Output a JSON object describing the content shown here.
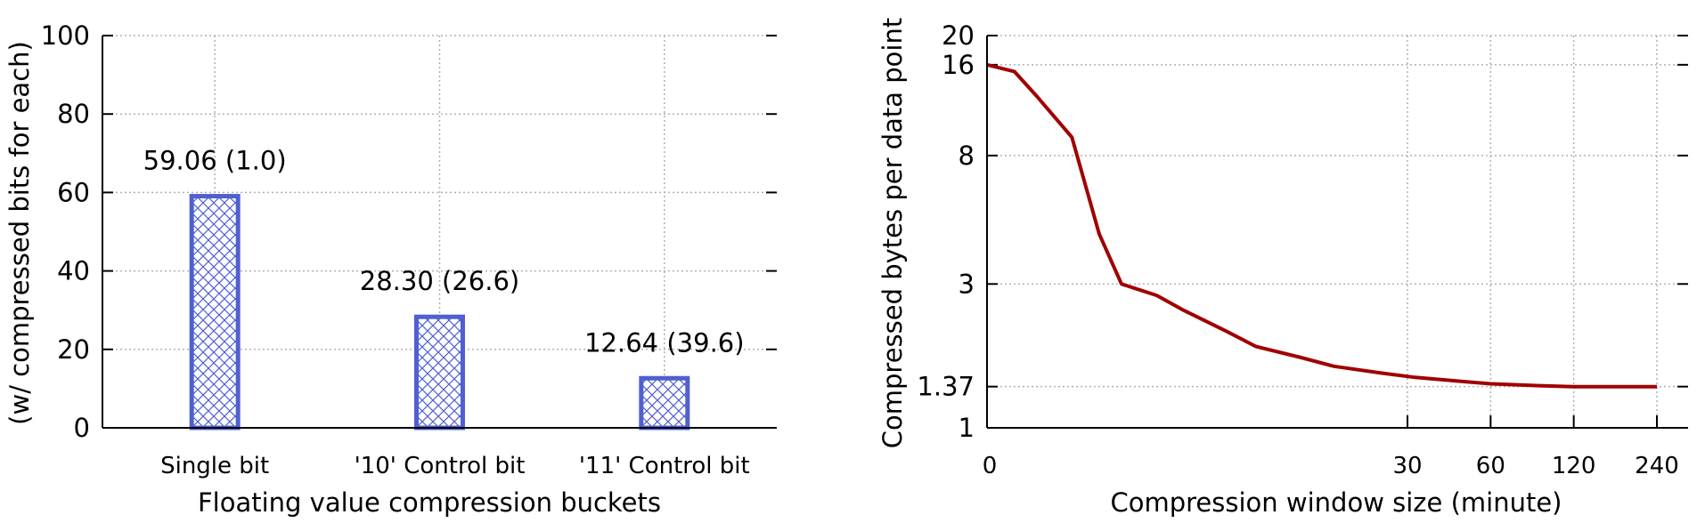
{
  "colors": {
    "bar_stroke": "#5060d0",
    "bar_hatch": "#5060d0",
    "line": "#a00000",
    "axis": "#000000",
    "grid": "#b0b0b0"
  },
  "chart_data": [
    {
      "type": "bar",
      "title": "",
      "xlabel": "Floating value compression buckets",
      "ylabel": "(w/ compressed bits for each)",
      "categories": [
        "Single bit",
        "'10' Control bit",
        "'11' Control bit"
      ],
      "values": [
        59.06,
        28.3,
        12.64
      ],
      "data_labels": [
        "59.06 (1.0)",
        "28.30 (26.6)",
        "12.64 (39.6)"
      ],
      "ylim": [
        0,
        100
      ],
      "yticks": [
        0,
        20,
        40,
        60,
        80,
        100
      ],
      "ytick_labels": [
        "0",
        "20",
        "40",
        "60",
        "80",
        "100"
      ],
      "grid": true,
      "pattern": "crosshatch"
    },
    {
      "type": "line",
      "title": "",
      "xlabel": "Compression window size (minute)",
      "ylabel": "Compressed bytes per data point",
      "xscale": "log",
      "yscale": "log",
      "xlim": [
        0,
        240
      ],
      "ylim": [
        1,
        20
      ],
      "xticks": [
        0,
        30,
        60,
        120,
        240
      ],
      "xtick_labels": [
        "0",
        "30",
        "60",
        "120",
        "240"
      ],
      "yticks": [
        1,
        1.37,
        3,
        8,
        16,
        20
      ],
      "ytick_labels": [
        "1",
        "1.37",
        "3",
        "8",
        "16",
        "20"
      ],
      "grid": true,
      "series": [
        {
          "x": [
            0,
            0.25,
            0.5,
            1,
            1.5,
            2,
            3,
            4,
            6,
            8,
            12,
            16,
            24,
            32,
            45,
            60,
            90,
            120,
            240
          ],
          "y": [
            16,
            15.2,
            12.6,
            9.2,
            4.4,
            3.0,
            2.75,
            2.45,
            2.1,
            1.86,
            1.71,
            1.6,
            1.52,
            1.47,
            1.43,
            1.4,
            1.38,
            1.37,
            1.37
          ]
        }
      ]
    }
  ]
}
